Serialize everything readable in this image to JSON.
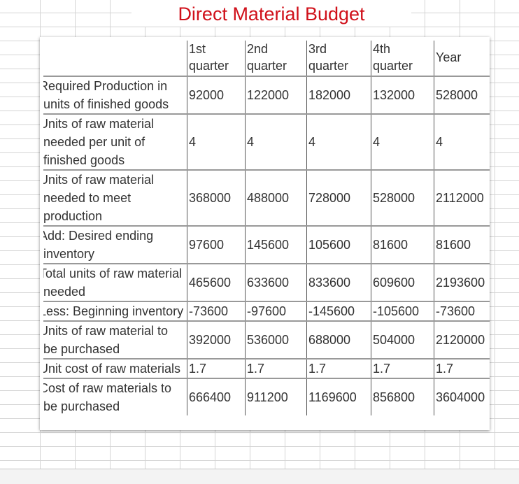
{
  "title": "Direct Material Budget",
  "table": {
    "headers": [
      "1st quarter",
      "2nd quarter",
      "3rd quarter",
      "4th quarter",
      "Year"
    ],
    "rows": [
      {
        "label": "Required Production in units of finished goods",
        "values": [
          "92000",
          "122000",
          "182000",
          "132000",
          "528000"
        ]
      },
      {
        "label": "Units of raw material needed per unit of finished goods",
        "values": [
          "4",
          "4",
          "4",
          "4",
          "4"
        ]
      },
      {
        "label": "Units of raw material needed to meet production",
        "values": [
          "368000",
          "488000",
          "728000",
          "528000",
          "2112000"
        ]
      },
      {
        "label": "Add: Desired ending inventory",
        "values": [
          "97600",
          "145600",
          "105600",
          "81600",
          "81600"
        ]
      },
      {
        "label": "Total units of raw material needed",
        "values": [
          "465600",
          "633600",
          "833600",
          "609600",
          "2193600"
        ]
      },
      {
        "label": "Less: Beginning inventory",
        "values": [
          "-73600",
          "-97600",
          "-145600",
          "-105600",
          "-73600"
        ]
      },
      {
        "label": "Units of raw material to be purchased",
        "values": [
          "392000",
          "536000",
          "688000",
          "504000",
          "2120000"
        ]
      },
      {
        "label": "Unit cost of raw materials",
        "values": [
          "1.7",
          "1.7",
          "1.7",
          "1.7",
          "1.7"
        ]
      },
      {
        "label": "Cost of raw materials to be purchased",
        "values": [
          "666400",
          "911200",
          "1169600",
          "856800",
          "3604000"
        ]
      }
    ]
  }
}
